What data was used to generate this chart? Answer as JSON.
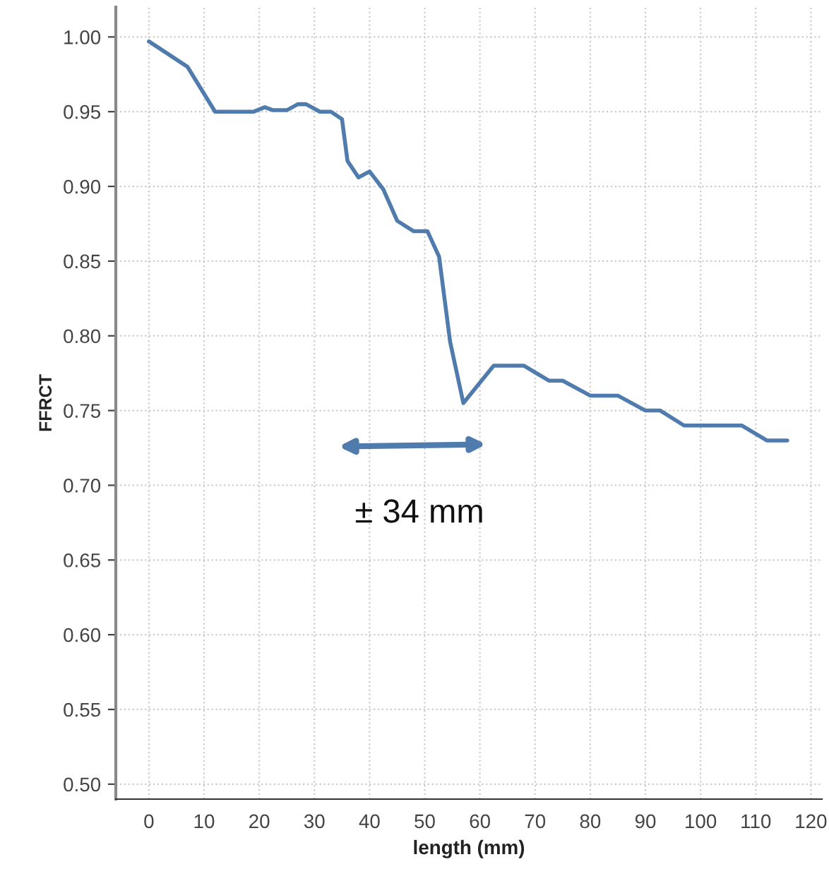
{
  "chart_data": {
    "type": "line",
    "xlabel": "length (mm)",
    "ylabel": "FFRCT",
    "x": [
      0,
      7,
      12,
      19,
      21,
      22.5,
      25,
      27,
      28.5,
      31,
      33,
      35,
      36,
      38,
      40,
      42.5,
      45,
      48,
      50.5,
      52.6,
      54.6,
      57,
      62.5,
      68,
      72.5,
      75,
      80,
      85,
      90,
      92.7,
      97,
      107.5,
      112,
      115.7
    ],
    "series": [
      {
        "color": "#4f7bad",
        "values": [
          0.997,
          0.98,
          0.95,
          0.95,
          0.953,
          0.951,
          0.951,
          0.955,
          0.955,
          0.95,
          0.95,
          0.945,
          0.917,
          0.906,
          0.91,
          0.898,
          0.877,
          0.87,
          0.87,
          0.853,
          0.796,
          0.755,
          0.78,
          0.78,
          0.77,
          0.77,
          0.76,
          0.76,
          0.75,
          0.75,
          0.74,
          0.74,
          0.73,
          0.73
        ]
      }
    ],
    "xlim": [
      -6,
      122
    ],
    "xticks": [
      0,
      10,
      20,
      30,
      40,
      50,
      60,
      70,
      80,
      90,
      100,
      110,
      120
    ],
    "ylim": [
      0.49,
      1.02
    ],
    "yticks": [
      {
        "value": 0.5,
        "label": "0.50"
      },
      {
        "value": 0.55,
        "label": "0.55"
      },
      {
        "value": 0.6,
        "label": "0.60"
      },
      {
        "value": 0.65,
        "label": "0.65"
      },
      {
        "value": 0.7,
        "label": "0.70"
      },
      {
        "value": 0.75,
        "label": "0.75"
      },
      {
        "value": 0.8,
        "label": "0.80"
      },
      {
        "value": 0.85,
        "label": "0.85"
      },
      {
        "value": 0.9,
        "label": "0.90"
      },
      {
        "value": 0.95,
        "label": "0.95"
      },
      {
        "value": 1.0,
        "label": "1.00"
      }
    ],
    "grid": true,
    "marker": "none",
    "line_style": "solid",
    "legend": false,
    "annotations": [
      "± 34 mm"
    ]
  }
}
